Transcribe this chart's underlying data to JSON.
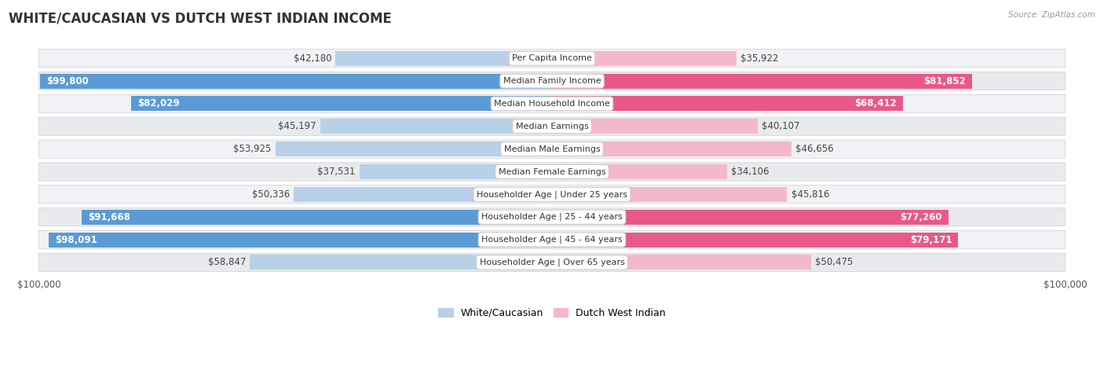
{
  "title": "WHITE/CAUCASIAN VS DUTCH WEST INDIAN INCOME",
  "source": "Source: ZipAtlas.com",
  "categories": [
    "Per Capita Income",
    "Median Family Income",
    "Median Household Income",
    "Median Earnings",
    "Median Male Earnings",
    "Median Female Earnings",
    "Householder Age | Under 25 years",
    "Householder Age | 25 - 44 years",
    "Householder Age | 45 - 64 years",
    "Householder Age | Over 65 years"
  ],
  "white_values": [
    42180,
    99800,
    82029,
    45197,
    53925,
    37531,
    50336,
    91668,
    98091,
    58847
  ],
  "dwi_values": [
    35922,
    81852,
    68412,
    40107,
    46656,
    34106,
    45816,
    77260,
    79171,
    50475
  ],
  "white_labels": [
    "$42,180",
    "$99,800",
    "$82,029",
    "$45,197",
    "$53,925",
    "$37,531",
    "$50,336",
    "$91,668",
    "$98,091",
    "$58,847"
  ],
  "dwi_labels": [
    "$35,922",
    "$81,852",
    "$68,412",
    "$40,107",
    "$46,656",
    "$34,106",
    "$45,816",
    "$77,260",
    "$79,171",
    "$50,475"
  ],
  "max_value": 100000,
  "white_color_light": "#b8d0e8",
  "white_color_dark": "#5b9bd5",
  "dwi_color_light": "#f4b8cc",
  "dwi_color_dark": "#e8588a",
  "white_threshold": 75000,
  "dwi_threshold": 65000,
  "title_fontsize": 12,
  "label_fontsize": 8.5,
  "cat_fontsize": 8.0,
  "legend_fontsize": 9,
  "axis_fontsize": 8.5
}
